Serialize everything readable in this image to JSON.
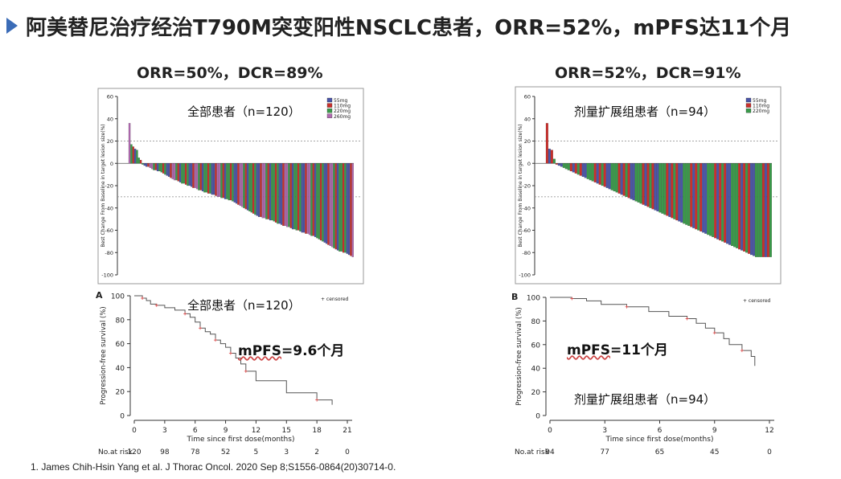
{
  "title": "阿美替尼治疗经治T790M突变阳性NSCLC患者，ORR=52%，mPFS达11个月",
  "colors": {
    "accent": "#3b6cb7",
    "dose_55": "#4a55a8",
    "dose_110": "#c9302c",
    "dose_220": "#3a9a4a",
    "dose_260": "#b06ab0",
    "km_line": "#555555",
    "censor": "#e04848"
  },
  "reference": "1.   James Chih-Hsin Yang et al. J Thorac Oncol. 2020 Sep 8;S1556-0864(20)30714-0.",
  "chart_data": [
    {
      "type": "bar",
      "header": "ORR=50%，DCR=89%",
      "annotation": "全部患者（n=120）",
      "ylabel": "Best Change From Baseline in target lesion size(%)",
      "ylim": [
        -100,
        60
      ],
      "yticks": [
        "60",
        "40",
        "20",
        "0",
        "-20",
        "-40",
        "-60",
        "-80",
        "-100"
      ],
      "reference_lines": [
        20,
        -30
      ],
      "legend": [
        "55mg",
        "110mg",
        "220mg",
        "260mg"
      ],
      "n": 120,
      "values": [
        36,
        17,
        15,
        13,
        12,
        5,
        3,
        -1,
        -2,
        -3,
        -3,
        -4,
        -5,
        -6,
        -6,
        -7,
        -7,
        -8,
        -9,
        -10,
        -11,
        -12,
        -13,
        -14,
        -15,
        -15,
        -16,
        -17,
        -18,
        -18,
        -19,
        -20,
        -20,
        -21,
        -22,
        -22,
        -23,
        -24,
        -24,
        -25,
        -26,
        -26,
        -27,
        -27,
        -28,
        -28,
        -29,
        -30,
        -30,
        -31,
        -31,
        -32,
        -32,
        -33,
        -33,
        -34,
        -35,
        -36,
        -37,
        -38,
        -39,
        -40,
        -41,
        -42,
        -43,
        -44,
        -45,
        -46,
        -47,
        -48,
        -48,
        -49,
        -49,
        -50,
        -50,
        -51,
        -51,
        -52,
        -53,
        -54,
        -54,
        -55,
        -56,
        -56,
        -57,
        -57,
        -58,
        -59,
        -59,
        -60,
        -60,
        -61,
        -62,
        -62,
        -63,
        -63,
        -64,
        -65,
        -65,
        -66,
        -67,
        -68,
        -69,
        -70,
        -71,
        -72,
        -73,
        -74,
        -75,
        -76,
        -77,
        -78,
        -79,
        -79,
        -80,
        -80,
        -81,
        -82,
        -83,
        -84
      ]
    },
    {
      "type": "bar",
      "header": "ORR=52%，DCR=91%",
      "annotation": "剂量扩展组患者（n=94）",
      "ylabel": "Best Change From Baseline in target lesion size(%)",
      "ylim": [
        -100,
        60
      ],
      "yticks": [
        "60",
        "40",
        "20",
        "0",
        "-20",
        "-40",
        "-60",
        "-80",
        "-100"
      ],
      "reference_lines": [
        20,
        -30
      ],
      "legend": [
        "55mg",
        "110mg",
        "220mg"
      ],
      "n": 94,
      "values": [
        36,
        13,
        12,
        4,
        -1,
        -2,
        -3,
        -4,
        -5,
        -6,
        -7,
        -8,
        -9,
        -10,
        -11,
        -12,
        -13,
        -14,
        -15,
        -16,
        -17,
        -18,
        -19,
        -20,
        -21,
        -22,
        -23,
        -24,
        -25,
        -26,
        -27,
        -28,
        -29,
        -30,
        -31,
        -32,
        -33,
        -34,
        -35,
        -36,
        -37,
        -38,
        -39,
        -40,
        -41,
        -42,
        -43,
        -44,
        -45,
        -46,
        -47,
        -48,
        -49,
        -50,
        -51,
        -52,
        -53,
        -54,
        -55,
        -56,
        -57,
        -58,
        -59,
        -60,
        -61,
        -62,
        -63,
        -64,
        -65,
        -66,
        -67,
        -68,
        -69,
        -70,
        -71,
        -72,
        -73,
        -74,
        -75,
        -76,
        -77,
        -78,
        -79,
        -80,
        -81,
        -82,
        -83,
        -84,
        -84,
        -84,
        -84,
        -84,
        -84,
        -84
      ]
    },
    {
      "type": "line",
      "annotation": "全部患者（n=120）",
      "mpfs_label": "mPFS",
      "mpfs_value": "=9.6个月",
      "panel_letter": "A",
      "xlabel": "Time since first dose(months)",
      "ylabel": "Progression-free survival (%)",
      "xlim": [
        0,
        21
      ],
      "ylim": [
        0,
        100
      ],
      "xticks": [
        "0",
        "3",
        "6",
        "9",
        "12",
        "15",
        "18",
        "21"
      ],
      "yticks": [
        "100",
        "80",
        "60",
        "40",
        "20",
        "0"
      ],
      "legend": "+ censored",
      "risk_label": "No.at risk",
      "risk_counts": [
        "120",
        "98",
        "78",
        "52",
        "5",
        "3",
        "2",
        "0"
      ],
      "x": [
        0,
        0.8,
        1.2,
        1.6,
        2.2,
        3,
        4,
        5,
        5.5,
        6,
        6.5,
        7,
        7.5,
        8,
        8.5,
        9,
        9.5,
        10,
        10.5,
        11,
        12,
        15,
        18,
        19.5
      ],
      "y": [
        100,
        98,
        96,
        93,
        92,
        90,
        88,
        85,
        82,
        78,
        73,
        70,
        68,
        63,
        60,
        57,
        52,
        48,
        43,
        37,
        29,
        19,
        13,
        9
      ]
    },
    {
      "type": "line",
      "annotation": "剂量扩展组患者（n=94）",
      "mpfs_label": "mPFS",
      "mpfs_value": "=11个月",
      "panel_letter": "B",
      "xlabel": "Time since first dose(months)",
      "ylabel": "Progression-free survival (%)",
      "xlim": [
        0,
        12
      ],
      "ylim": [
        0,
        100
      ],
      "xticks": [
        "0",
        "3",
        "6",
        "9",
        "12"
      ],
      "yticks": [
        "100",
        "80",
        "60",
        "40",
        "20",
        "0"
      ],
      "legend": "+ censored",
      "risk_label": "No.at risk",
      "risk_counts": [
        "94",
        "77",
        "65",
        "45",
        "0"
      ],
      "x": [
        0,
        1.2,
        2,
        2.8,
        4.2,
        5.4,
        6.5,
        7.5,
        8,
        8.5,
        9,
        9.5,
        9.8,
        10.5,
        11,
        11.2
      ],
      "y": [
        100,
        99,
        97,
        94,
        92,
        88,
        84,
        82,
        78,
        74,
        70,
        65,
        60,
        55,
        50,
        42
      ]
    }
  ]
}
